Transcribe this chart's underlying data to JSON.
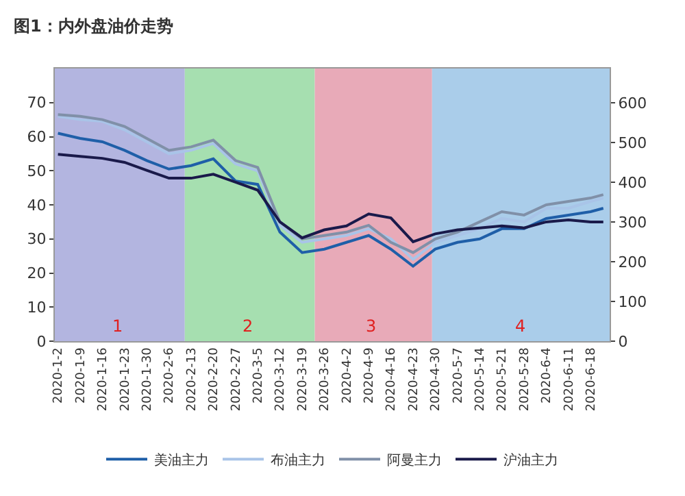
{
  "chart_data": {
    "type": "line",
    "title": "图1：内外盘油价走势",
    "x": [
      "2020-01-02",
      "2020-01-09",
      "2020-01-16",
      "2020-01-23",
      "2020-01-30",
      "2020-02-06",
      "2020-02-13",
      "2020-02-20",
      "2020-02-27",
      "2020-03-05",
      "2020-03-12",
      "2020-03-19",
      "2020-03-26",
      "2020-04-02",
      "2020-04-09",
      "2020-04-16",
      "2020-04-23",
      "2020-04-30",
      "2020-05-07",
      "2020-05-14",
      "2020-05-21",
      "2020-05-28",
      "2020-06-04",
      "2020-06-11",
      "2020-06-18",
      "2020-06-22"
    ],
    "series": [
      {
        "name": "美油主力",
        "color": "#1f5fa8",
        "values": [
          61,
          59.5,
          58.5,
          56,
          53,
          50.5,
          51.5,
          53.5,
          47,
          46,
          32,
          26,
          27,
          29,
          31,
          27,
          22,
          27,
          29,
          30,
          33,
          33,
          36,
          37,
          38,
          39
        ]
      },
      {
        "name": "布油主力",
        "color": "#a9c4e8",
        "values": [
          66,
          65,
          64.5,
          62,
          58.5,
          55,
          56,
          58,
          52,
          50,
          34,
          29,
          30,
          31,
          33,
          30,
          24,
          29,
          31,
          33,
          36,
          35,
          39,
          39,
          41,
          42
        ]
      },
      {
        "name": "阿曼主力",
        "color": "#8090a8",
        "values": [
          66.5,
          66,
          65,
          63,
          59.5,
          56,
          57,
          59,
          53,
          51,
          35,
          30,
          31,
          32,
          34,
          29,
          26,
          30,
          32,
          35,
          38,
          37,
          40,
          41,
          42,
          43
        ]
      },
      {
        "name": "沪油主力",
        "color": "#1a1a4a",
        "axis": "y2",
        "values": [
          470,
          465,
          460,
          450,
          430,
          410,
          410,
          420,
          400,
          380,
          300,
          260,
          280,
          290,
          320,
          310,
          250,
          270,
          280,
          285,
          290,
          285,
          300,
          305,
          300,
          300
        ]
      }
    ],
    "xlim": [
      "2020-01-01",
      "2020-06-24"
    ],
    "xticks": [
      {
        "value": "2020-01-02",
        "label": "2020-1-2"
      },
      {
        "value": "2020-01-09",
        "label": "2020-1-9"
      },
      {
        "value": "2020-01-16",
        "label": "2020-1-16"
      },
      {
        "value": "2020-01-23",
        "label": "2020-1-23"
      },
      {
        "value": "2020-01-30",
        "label": "2020-1-30"
      },
      {
        "value": "2020-02-06",
        "label": "2020-2-6"
      },
      {
        "value": "2020-02-13",
        "label": "2020-2-13"
      },
      {
        "value": "2020-02-20",
        "label": "2020-2-20"
      },
      {
        "value": "2020-02-27",
        "label": "2020-2-27"
      },
      {
        "value": "2020-03-05",
        "label": "2020-3-5"
      },
      {
        "value": "2020-03-12",
        "label": "2020-3-12"
      },
      {
        "value": "2020-03-19",
        "label": "2020-3-19"
      },
      {
        "value": "2020-03-26",
        "label": "2020-3-26"
      },
      {
        "value": "2020-04-02",
        "label": "2020-4-2"
      },
      {
        "value": "2020-04-09",
        "label": "2020-4-9"
      },
      {
        "value": "2020-04-16",
        "label": "2020-4-16"
      },
      {
        "value": "2020-04-23",
        "label": "2020-4-23"
      },
      {
        "value": "2020-04-30",
        "label": "2020-4-30"
      },
      {
        "value": "2020-05-07",
        "label": "2020-5-7"
      },
      {
        "value": "2020-05-14",
        "label": "2020-5-14"
      },
      {
        "value": "2020-05-21",
        "label": "2020-5-21"
      },
      {
        "value": "2020-05-28",
        "label": "2020-5-28"
      },
      {
        "value": "2020-06-04",
        "label": "2020-6-4"
      },
      {
        "value": "2020-06-11",
        "label": "2020-6-11"
      },
      {
        "value": "2020-06-18",
        "label": "2020-6-18"
      }
    ],
    "ylim": [
      0,
      80
    ],
    "yticks": [
      0,
      10,
      20,
      30,
      40,
      50,
      60,
      70
    ],
    "y2lim": [
      0,
      686
    ],
    "y2ticks": [
      0,
      100,
      200,
      300,
      400,
      500,
      600
    ],
    "bands": [
      {
        "axis": "x",
        "from": "2020-01-01",
        "to": "2020-02-11",
        "label": "1",
        "color": "#b3b5e0"
      },
      {
        "axis": "x",
        "from": "2020-02-11",
        "to": "2020-03-23",
        "label": "2",
        "color": "#a6dfb0"
      },
      {
        "axis": "x",
        "from": "2020-03-23",
        "to": "2020-04-29",
        "label": "3",
        "color": "#e8aab8"
      },
      {
        "axis": "x",
        "from": "2020-04-29",
        "to": "2020-06-24",
        "label": "4",
        "color": "#aacdea"
      }
    ],
    "grid": false,
    "legend": "bottom",
    "marker": "none",
    "line_style": "solid"
  }
}
